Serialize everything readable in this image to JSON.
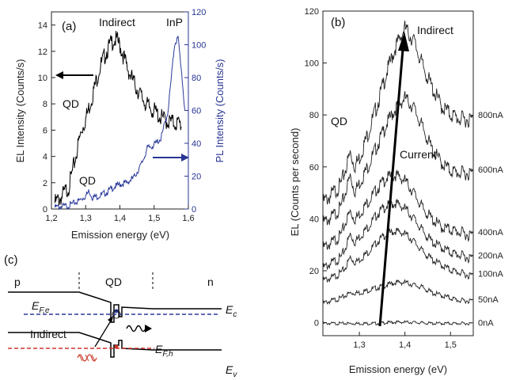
{
  "panel_a": {
    "letter": "(a)",
    "xlabel": "Emission energy (eV)",
    "ylabel_left": "EL Intensity (Counts/s)",
    "ylabel_right": "PL Intensity (Counts/s)",
    "ann_indirect": "Indirect",
    "ann_inp": "InP",
    "ann_qd_el": "QD",
    "ann_qd_pl": "QD"
  },
  "panel_b": {
    "letter": "(b)",
    "xlabel": "Emission energy (eV)",
    "ylabel": "EL (Counts per second)",
    "ann_indirect": "Indirect",
    "ann_qd": "QD",
    "ann_current": "Current"
  },
  "panel_c": {
    "letter": "(c)",
    "p": "p",
    "qd": "QD",
    "n": "n",
    "ec": "E",
    "ec_sub": "c",
    "ev": "E",
    "ev_sub": "v",
    "efe": "E",
    "efe_sub": "F,e",
    "efh": "E",
    "efh_sub": "F,h",
    "indirect": "Indirect"
  },
  "chart_data": [
    {
      "type": "line",
      "panel": "(a)",
      "xlabel": "Emission energy (eV)",
      "ylabel": "EL Intensity (Counts/s)",
      "y2label": "PL Intensity (Counts/s)",
      "xlim": [
        1.2,
        1.6
      ],
      "ylim": [
        0,
        15
      ],
      "y2lim": [
        0,
        120
      ],
      "xticks": [
        "1,2",
        "1,3",
        "1,4",
        "1,5",
        "1,6"
      ],
      "yticks": [
        0,
        2,
        4,
        6,
        8,
        10,
        12,
        14
      ],
      "y2ticks": [
        0,
        20,
        40,
        60,
        80,
        100,
        120
      ],
      "series": [
        {
          "axis": "left",
          "color": "#000000",
          "x": [
            1.21,
            1.23,
            1.25,
            1.26,
            1.27,
            1.28,
            1.29,
            1.3,
            1.32,
            1.34,
            1.36,
            1.38,
            1.39,
            1.4,
            1.42,
            1.44,
            1.46,
            1.48,
            1.5,
            1.52,
            1.54,
            1.56,
            1.58
          ],
          "y": [
            0.8,
            1.3,
            2.0,
            3.0,
            4.2,
            5.5,
            6.5,
            7.2,
            9.0,
            11.0,
            12.3,
            13.2,
            13.2,
            12.8,
            11.2,
            10.0,
            9.0,
            8.2,
            7.8,
            7.3,
            7.0,
            6.9,
            6.8
          ]
        },
        {
          "axis": "right",
          "color": "#2b3a9c",
          "x": [
            1.21,
            1.25,
            1.28,
            1.3,
            1.31,
            1.32,
            1.34,
            1.36,
            1.38,
            1.4,
            1.42,
            1.44,
            1.46,
            1.47,
            1.48,
            1.5,
            1.52,
            1.54,
            1.55,
            1.56,
            1.57,
            1.58,
            1.59
          ],
          "y": [
            2,
            3,
            6,
            9,
            12,
            8,
            9,
            11,
            14,
            16,
            17,
            20,
            27,
            32,
            38,
            40,
            44,
            60,
            80,
            102,
            105,
            85,
            60
          ]
        }
      ]
    },
    {
      "type": "line",
      "panel": "(b)",
      "xlabel": "Emission energy (eV)",
      "ylabel": "EL (Counts per second)",
      "xlim": [
        1.22,
        1.55
      ],
      "ylim": [
        -5,
        120
      ],
      "xticks": [
        "1,3",
        "1,4",
        "1,5"
      ],
      "yticks": [
        0,
        20,
        40,
        60,
        80,
        100,
        120
      ],
      "x": [
        1.22,
        1.24,
        1.26,
        1.27,
        1.28,
        1.29,
        1.3,
        1.32,
        1.34,
        1.36,
        1.38,
        1.4,
        1.42,
        1.44,
        1.46,
        1.48,
        1.5,
        1.52,
        1.54,
        1.55
      ],
      "series": [
        {
          "name": "0nA",
          "y": [
            0,
            0,
            0,
            0,
            0,
            0,
            0,
            0,
            0,
            0.3,
            0.5,
            0.5,
            0.4,
            0.2,
            0,
            0,
            0,
            0,
            0,
            0
          ]
        },
        {
          "name": "50nA",
          "y": [
            8,
            9,
            10,
            11,
            12,
            12,
            12,
            13,
            14,
            15,
            16,
            16,
            15,
            14,
            12,
            11,
            10,
            9,
            9,
            9
          ]
        },
        {
          "name": "100nA",
          "y": [
            17,
            18,
            20,
            22,
            26,
            24,
            25,
            28,
            32,
            35,
            36,
            35,
            32,
            28,
            25,
            23,
            21,
            20,
            19,
            19
          ]
        },
        {
          "name": "200nA",
          "y": [
            22,
            24,
            26,
            30,
            35,
            32,
            34,
            38,
            43,
            46,
            47,
            45,
            41,
            36,
            32,
            30,
            28,
            27,
            26,
            26
          ]
        },
        {
          "name": "400nA",
          "y": [
            30,
            32,
            35,
            40,
            44,
            41,
            43,
            48,
            53,
            57,
            58,
            56,
            51,
            45,
            41,
            38,
            37,
            36,
            35,
            35
          ]
        },
        {
          "name": "600nA",
          "y": [
            40,
            42,
            46,
            52,
            58,
            52,
            55,
            62,
            70,
            78,
            84,
            88,
            84,
            76,
            68,
            63,
            60,
            59,
            59,
            59
          ]
        },
        {
          "name": "800nA",
          "y": [
            48,
            51,
            55,
            61,
            67,
            62,
            65,
            75,
            86,
            98,
            108,
            115,
            110,
            100,
            92,
            85,
            82,
            80,
            80,
            80
          ]
        }
      ]
    }
  ]
}
